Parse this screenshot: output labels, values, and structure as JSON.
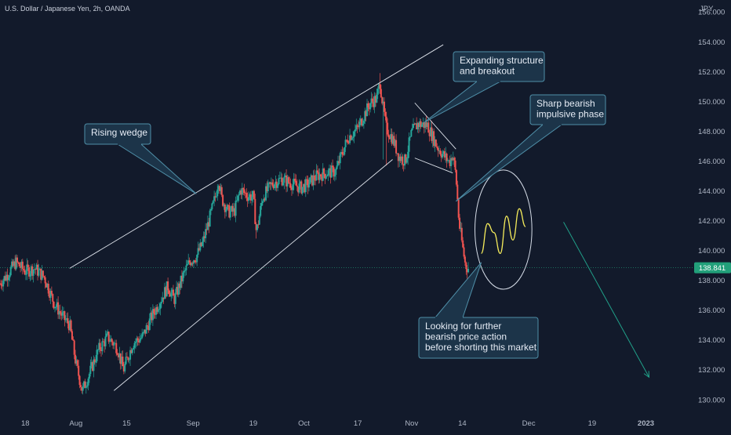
{
  "header": {
    "symbol": "U.S. Dollar / Japanese Yen, 2h, OANDA"
  },
  "colors": {
    "background": "#121a2b",
    "up": "#26a69a",
    "down": "#ef5350",
    "trendline": "#dfe4ec",
    "callout_border": "#4f8fa8",
    "callout_fill": "#1c3449",
    "price_tag": "#22a07a",
    "projection": "#21a089",
    "wave": "#f3ea5b"
  },
  "chart_data": {
    "type": "candlestick",
    "title": "U.S. Dollar / Japanese Yen, 2h, OANDA",
    "ylabel": "JPY",
    "ylim": [
      129.2,
      156.8
    ],
    "y_ticks": [
      "130.000",
      "132.000",
      "134.000",
      "136.000",
      "138.000",
      "140.000",
      "142.000",
      "144.000",
      "146.000",
      "148.000",
      "150.000",
      "152.000",
      "154.000",
      "156.000"
    ],
    "x_ticks": [
      {
        "label": "18",
        "idx": 8
      },
      {
        "label": "Aug",
        "idx": 24
      },
      {
        "label": "15",
        "idx": 40
      },
      {
        "label": "Sep",
        "idx": 61
      },
      {
        "label": "19",
        "idx": 80
      },
      {
        "label": "Oct",
        "idx": 96
      },
      {
        "label": "17",
        "idx": 113
      },
      {
        "label": "Nov",
        "idx": 130
      },
      {
        "label": "14",
        "idx": 146
      },
      {
        "label": "Dec",
        "idx": 167
      },
      {
        "label": "19",
        "idx": 187
      },
      {
        "label": "2023",
        "idx": 204
      }
    ],
    "index_range": [
      0,
      218
    ],
    "last_price": "138.841",
    "last_value": 138.841,
    "key_points": [
      [
        0,
        137.8
      ],
      [
        2,
        138.3
      ],
      [
        5,
        139.2
      ],
      [
        8,
        138.6
      ],
      [
        11,
        138.8
      ],
      [
        14,
        138.2
      ],
      [
        17,
        136.5
      ],
      [
        20,
        135.5
      ],
      [
        22,
        135.0
      ],
      [
        24,
        132.4
      ],
      [
        26,
        130.6
      ],
      [
        28,
        131.6
      ],
      [
        31,
        133.3
      ],
      [
        34,
        134.2
      ],
      [
        37,
        133.5
      ],
      [
        39,
        132.0
      ],
      [
        42,
        133.8
      ],
      [
        45,
        134.2
      ],
      [
        48,
        135.6
      ],
      [
        50,
        136.4
      ],
      [
        53,
        137.6
      ],
      [
        55,
        136.7
      ],
      [
        58,
        138.4
      ],
      [
        60,
        139.3
      ],
      [
        62,
        139.6
      ],
      [
        64,
        140.5
      ],
      [
        66,
        142.0
      ],
      [
        68,
        143.6
      ],
      [
        69,
        144.8
      ],
      [
        70,
        143.5
      ],
      [
        72,
        142.6
      ],
      [
        74,
        142.6
      ],
      [
        76,
        144.1
      ],
      [
        78,
        143.7
      ],
      [
        80,
        143.6
      ],
      [
        81,
        141.2
      ],
      [
        83,
        143.6
      ],
      [
        86,
        144.5
      ],
      [
        89,
        144.8
      ],
      [
        92,
        144.5
      ],
      [
        95,
        144.2
      ],
      [
        97,
        144.4
      ],
      [
        100,
        145.0
      ],
      [
        103,
        145.2
      ],
      [
        106,
        145.3
      ],
      [
        108,
        146.5
      ],
      [
        110,
        147.6
      ],
      [
        113,
        148.2
      ],
      [
        115,
        149.1
      ],
      [
        117,
        149.9
      ],
      [
        119,
        150.2
      ],
      [
        120,
        151.3
      ],
      [
        121,
        149.6
      ],
      [
        122,
        148.2
      ],
      [
        124,
        147.5
      ],
      [
        126,
        146.3
      ],
      [
        128,
        146.0
      ],
      [
        130,
        147.9
      ],
      [
        132,
        148.5
      ],
      [
        135,
        148.4
      ],
      [
        138,
        147.0
      ],
      [
        140,
        146.4
      ],
      [
        142,
        145.9
      ],
      [
        143,
        146.5
      ],
      [
        144,
        145.0
      ],
      [
        145,
        141.8
      ],
      [
        146,
        140.4
      ],
      [
        147,
        139.0
      ],
      [
        148,
        138.8
      ]
    ],
    "wave_points": [
      [
        152,
        139.8
      ],
      [
        154,
        141.8
      ],
      [
        156,
        141.2
      ],
      [
        158,
        139.8
      ],
      [
        160,
        142.3
      ],
      [
        162,
        140.7
      ],
      [
        164,
        142.8
      ],
      [
        166,
        141.6
      ]
    ],
    "annotations": [
      {
        "id": "rising-wedge",
        "text": "Rising wedge"
      },
      {
        "id": "expanding",
        "text": "Expanding structure and breakout"
      },
      {
        "id": "sharp-bearish",
        "text": "Sharp bearish impulsive phase"
      },
      {
        "id": "looking",
        "text": "Looking for further bearish price action before shorting this market"
      }
    ]
  },
  "annotation_lines": {
    "rising-wedge": [
      "Rising wedge"
    ],
    "expanding": [
      "Expanding structure",
      "and breakout"
    ],
    "sharp-bearish": [
      "Sharp bearish",
      "impulsive phase"
    ],
    "looking": [
      "Looking for further",
      "bearish price action",
      "before shorting this market"
    ]
  }
}
